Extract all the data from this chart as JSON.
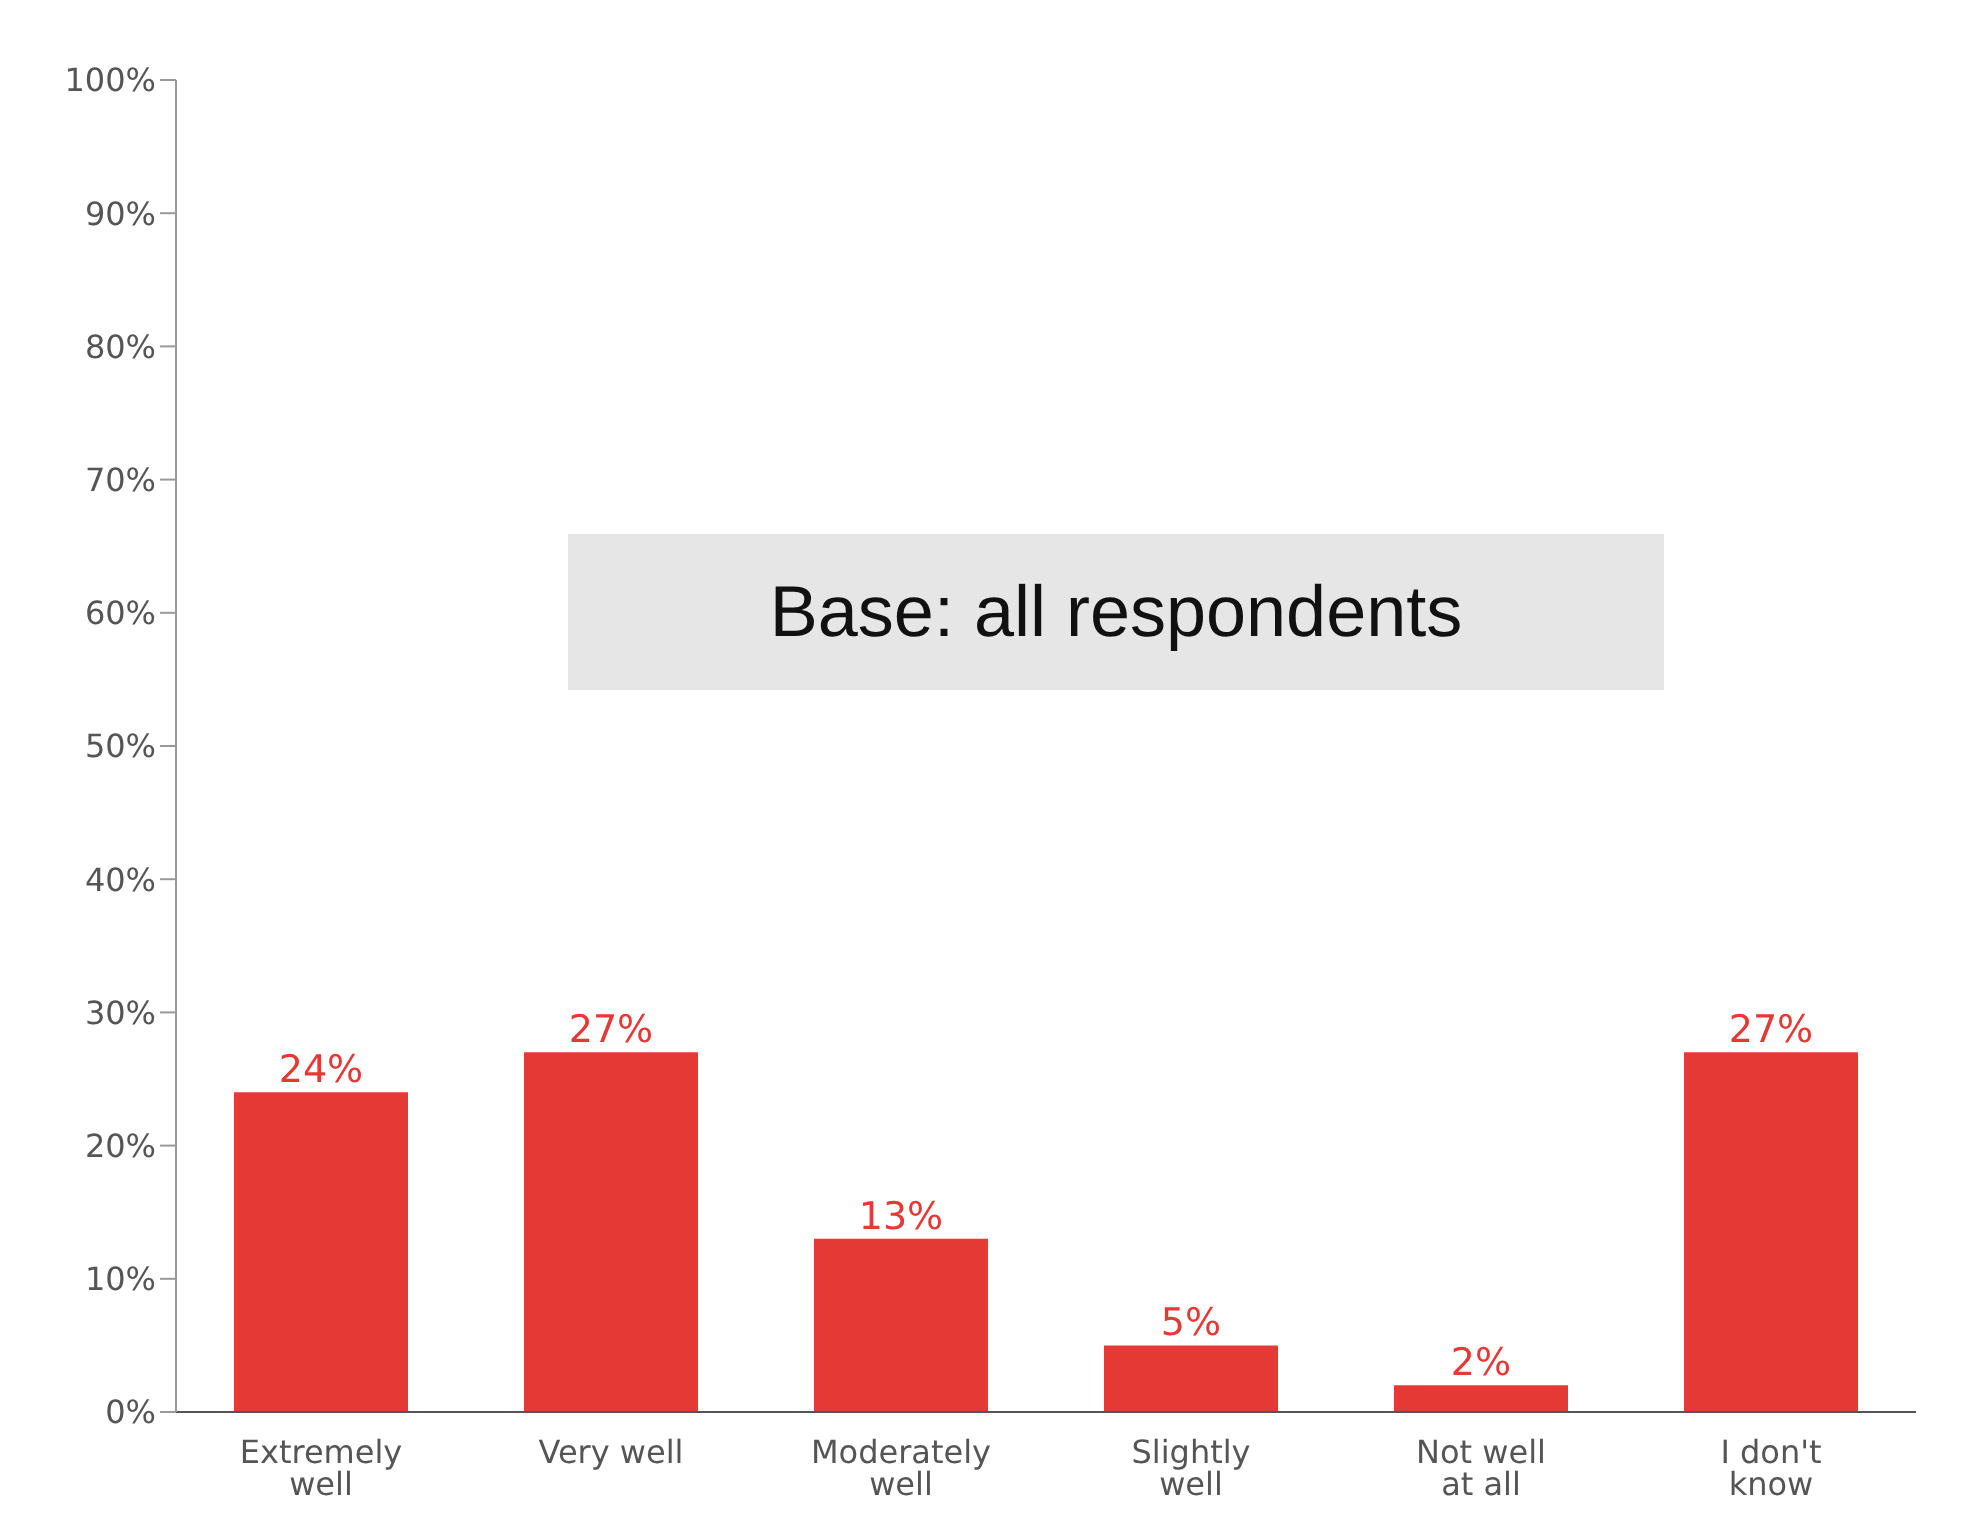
{
  "chart_data": {
    "type": "bar",
    "categories": [
      "Extremely well",
      "Very well",
      "Moderately well",
      "Slightly well",
      "Not well at all",
      "I don't know"
    ],
    "values": [
      24,
      27,
      13,
      5,
      2,
      27
    ],
    "color": "#e53935",
    "value_labels": [
      "24%",
      "27%",
      "13%",
      "5%",
      "2%",
      "27%"
    ],
    "ylim": [
      0,
      100
    ],
    "yticks": [
      {
        "value": 0,
        "label": "0%"
      },
      {
        "value": 10,
        "label": "10%"
      },
      {
        "value": 20,
        "label": "20%"
      },
      {
        "value": 30,
        "label": "30%"
      },
      {
        "value": 40,
        "label": "40%"
      },
      {
        "value": 50,
        "label": "50%"
      },
      {
        "value": 60,
        "label": "60%"
      },
      {
        "value": 70,
        "label": "70%"
      },
      {
        "value": 80,
        "label": "80%"
      },
      {
        "value": 90,
        "label": "90%"
      },
      {
        "value": 100,
        "label": "100%"
      }
    ],
    "grid": false,
    "legend": false,
    "annotations": [
      "Base: all respondents"
    ]
  }
}
